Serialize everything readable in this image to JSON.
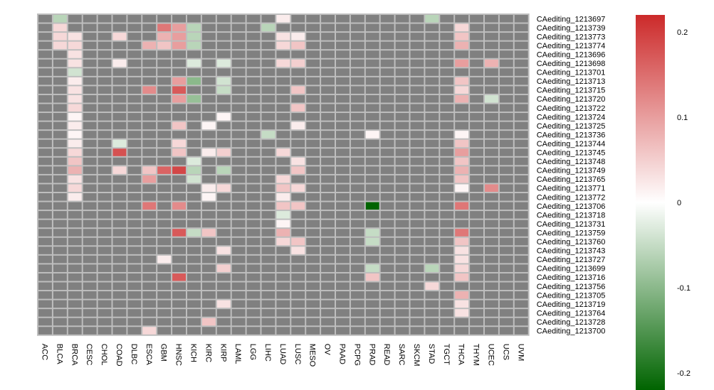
{
  "chart_data": {
    "type": "heatmap",
    "title": "",
    "columns": [
      "ACC",
      "BLCA",
      "BRCA",
      "CESC",
      "CHOL",
      "COAD",
      "DLBC",
      "ESCA",
      "GBM",
      "HNSC",
      "KICH",
      "KIRC",
      "KIRP",
      "LAML",
      "LGG",
      "LIHC",
      "LUAD",
      "LUSC",
      "MESO",
      "OV",
      "PAAD",
      "PCPG",
      "PRAD",
      "READ",
      "SARC",
      "SKCM",
      "STAD",
      "TGCT",
      "THCA",
      "THYM",
      "UCEC",
      "UCS",
      "UVM"
    ],
    "rows": [
      "CAediting_1213697",
      "CAediting_1213739",
      "CAediting_1213773",
      "CAediting_1213774",
      "CAediting_1213696",
      "CAediting_1213698",
      "CAediting_1213701",
      "CAediting_1213713",
      "CAediting_1213715",
      "CAediting_1213720",
      "CAediting_1213722",
      "CAediting_1213724",
      "CAediting_1213725",
      "CAediting_1213736",
      "CAediting_1213744",
      "CAediting_1213745",
      "CAediting_1213748",
      "CAediting_1213749",
      "CAediting_1213765",
      "CAediting_1213771",
      "CAediting_1213772",
      "CAediting_1213706",
      "CAediting_1213718",
      "CAediting_1213731",
      "CAediting_1213759",
      "CAediting_1213760",
      "CAediting_1213743",
      "CAediting_1213727",
      "CAediting_1213699",
      "CAediting_1213716",
      "CAediting_1213756",
      "CAediting_1213705",
      "CAediting_1213719",
      "CAediting_1213764",
      "CAediting_1213728",
      "CAediting_1213700"
    ],
    "values": [
      [
        null,
        -0.06,
        null,
        null,
        null,
        null,
        null,
        null,
        null,
        null,
        null,
        null,
        null,
        null,
        null,
        null,
        0.02,
        null,
        null,
        null,
        null,
        null,
        null,
        null,
        null,
        null,
        -0.06,
        null,
        null,
        null,
        null,
        null,
        null
      ],
      [
        null,
        0.04,
        null,
        null,
        null,
        null,
        null,
        null,
        0.14,
        0.1,
        -0.06,
        null,
        null,
        null,
        null,
        -0.06,
        null,
        null,
        null,
        null,
        null,
        null,
        null,
        null,
        null,
        null,
        null,
        null,
        0.04,
        null,
        null,
        null,
        null
      ],
      [
        null,
        0.04,
        0.03,
        null,
        null,
        0.04,
        null,
        null,
        0.08,
        0.1,
        -0.06,
        null,
        null,
        null,
        null,
        null,
        0.03,
        0.02,
        null,
        null,
        null,
        null,
        null,
        null,
        null,
        null,
        null,
        null,
        0.06,
        null,
        null,
        null,
        null
      ],
      [
        null,
        0.04,
        0.04,
        null,
        null,
        null,
        null,
        0.08,
        0.06,
        0.1,
        -0.06,
        null,
        null,
        null,
        null,
        null,
        0.04,
        0.06,
        null,
        null,
        null,
        null,
        null,
        null,
        null,
        null,
        null,
        null,
        0.08,
        null,
        null,
        null,
        null
      ],
      [
        null,
        null,
        0.03,
        null,
        null,
        null,
        null,
        null,
        null,
        null,
        null,
        null,
        null,
        null,
        null,
        null,
        null,
        null,
        null,
        null,
        null,
        null,
        null,
        null,
        null,
        null,
        null,
        null,
        null,
        null,
        null,
        null,
        null
      ],
      [
        null,
        null,
        0.03,
        null,
        null,
        0.02,
        null,
        null,
        null,
        null,
        -0.03,
        null,
        -0.03,
        null,
        null,
        null,
        0.04,
        0.05,
        null,
        null,
        null,
        null,
        null,
        null,
        null,
        null,
        null,
        null,
        0.1,
        null,
        0.08,
        null,
        null
      ],
      [
        null,
        null,
        -0.04,
        null,
        null,
        null,
        null,
        null,
        null,
        null,
        null,
        null,
        null,
        null,
        null,
        null,
        null,
        null,
        null,
        null,
        null,
        null,
        null,
        null,
        null,
        null,
        null,
        null,
        null,
        null,
        null,
        null,
        null
      ],
      [
        null,
        null,
        0.02,
        null,
        null,
        null,
        null,
        null,
        null,
        0.1,
        -0.1,
        null,
        -0.04,
        null,
        null,
        null,
        null,
        null,
        null,
        null,
        null,
        null,
        null,
        null,
        null,
        null,
        null,
        null,
        0.06,
        null,
        null,
        null,
        null
      ],
      [
        null,
        null,
        0.03,
        null,
        null,
        null,
        null,
        0.12,
        null,
        0.17,
        null,
        null,
        -0.05,
        null,
        null,
        null,
        null,
        0.06,
        null,
        null,
        null,
        null,
        null,
        null,
        null,
        null,
        null,
        null,
        0.04,
        null,
        null,
        null,
        null
      ],
      [
        null,
        null,
        0.03,
        null,
        null,
        null,
        null,
        null,
        null,
        0.1,
        -0.09,
        null,
        null,
        null,
        null,
        null,
        null,
        null,
        null,
        null,
        null,
        null,
        null,
        null,
        null,
        null,
        null,
        null,
        0.08,
        null,
        -0.04,
        null,
        null
      ],
      [
        null,
        null,
        0.04,
        null,
        null,
        null,
        null,
        null,
        null,
        null,
        null,
        null,
        null,
        null,
        null,
        null,
        null,
        0.06,
        null,
        null,
        null,
        null,
        null,
        null,
        null,
        null,
        null,
        null,
        null,
        null,
        null,
        null,
        null
      ],
      [
        null,
        null,
        0.01,
        null,
        null,
        null,
        null,
        null,
        null,
        null,
        null,
        null,
        0.01,
        null,
        null,
        null,
        null,
        null,
        null,
        null,
        null,
        null,
        null,
        null,
        null,
        null,
        null,
        null,
        null,
        null,
        null,
        null,
        null
      ],
      [
        null,
        null,
        0.02,
        null,
        null,
        null,
        null,
        null,
        null,
        0.06,
        null,
        0.01,
        null,
        null,
        null,
        null,
        null,
        0.02,
        null,
        null,
        null,
        null,
        null,
        null,
        null,
        null,
        null,
        null,
        null,
        null,
        null,
        null,
        null
      ],
      [
        null,
        null,
        0.01,
        null,
        null,
        null,
        null,
        null,
        null,
        null,
        null,
        null,
        null,
        null,
        null,
        -0.05,
        null,
        null,
        null,
        null,
        null,
        null,
        0.01,
        null,
        null,
        null,
        null,
        null,
        0.01,
        null,
        null,
        null,
        null
      ],
      [
        null,
        null,
        0.02,
        null,
        null,
        -0.03,
        null,
        null,
        null,
        0.04,
        null,
        null,
        null,
        null,
        null,
        null,
        null,
        null,
        null,
        null,
        null,
        null,
        null,
        null,
        null,
        null,
        null,
        null,
        0.06,
        null,
        null,
        null,
        null
      ],
      [
        null,
        null,
        0.04,
        null,
        null,
        0.18,
        null,
        null,
        null,
        0.06,
        null,
        0.02,
        0.05,
        null,
        null,
        null,
        0.04,
        null,
        null,
        null,
        null,
        null,
        null,
        null,
        null,
        null,
        null,
        null,
        0.1,
        null,
        null,
        null,
        null
      ],
      [
        null,
        null,
        0.06,
        null,
        null,
        null,
        null,
        null,
        null,
        null,
        -0.03,
        null,
        null,
        null,
        null,
        null,
        null,
        0.03,
        null,
        null,
        null,
        null,
        null,
        null,
        null,
        null,
        null,
        null,
        0.06,
        null,
        null,
        null,
        null
      ],
      [
        null,
        null,
        0.08,
        null,
        null,
        0.04,
        null,
        0.06,
        0.16,
        0.19,
        -0.06,
        null,
        -0.06,
        null,
        null,
        null,
        null,
        0.06,
        null,
        null,
        null,
        null,
        null,
        null,
        null,
        null,
        null,
        null,
        0.08,
        null,
        null,
        null,
        null
      ],
      [
        null,
        null,
        0.03,
        null,
        null,
        null,
        null,
        0.1,
        null,
        null,
        -0.04,
        null,
        null,
        null,
        null,
        null,
        0.04,
        null,
        null,
        null,
        null,
        null,
        null,
        null,
        null,
        null,
        null,
        null,
        0.06,
        null,
        null,
        null,
        null
      ],
      [
        null,
        null,
        0.04,
        null,
        null,
        null,
        null,
        null,
        null,
        null,
        null,
        0.02,
        0.04,
        null,
        null,
        null,
        0.06,
        0.04,
        null,
        null,
        null,
        null,
        null,
        null,
        null,
        null,
        null,
        null,
        0.01,
        null,
        0.12,
        null,
        null
      ],
      [
        null,
        null,
        0.02,
        null,
        null,
        null,
        null,
        null,
        null,
        null,
        null,
        0.01,
        null,
        null,
        null,
        null,
        0.02,
        null,
        null,
        null,
        null,
        null,
        null,
        null,
        null,
        null,
        null,
        null,
        null,
        null,
        null,
        null,
        null
      ],
      [
        null,
        null,
        null,
        null,
        null,
        null,
        null,
        0.14,
        null,
        0.12,
        null,
        null,
        null,
        null,
        null,
        null,
        0.06,
        0.06,
        null,
        null,
        null,
        null,
        -0.22,
        null,
        null,
        null,
        null,
        null,
        0.14,
        null,
        null,
        null,
        null
      ],
      [
        null,
        null,
        null,
        null,
        null,
        null,
        null,
        null,
        null,
        null,
        null,
        null,
        null,
        null,
        null,
        null,
        -0.03,
        null,
        null,
        null,
        null,
        null,
        null,
        null,
        null,
        null,
        null,
        null,
        null,
        null,
        null,
        null,
        null
      ],
      [
        null,
        null,
        null,
        null,
        null,
        null,
        null,
        null,
        null,
        null,
        null,
        null,
        null,
        null,
        null,
        null,
        0.01,
        null,
        null,
        null,
        null,
        null,
        null,
        null,
        null,
        null,
        null,
        null,
        null,
        null,
        null,
        null,
        null
      ],
      [
        null,
        null,
        null,
        null,
        null,
        null,
        null,
        null,
        null,
        0.17,
        -0.05,
        0.06,
        null,
        null,
        null,
        null,
        0.08,
        null,
        null,
        null,
        null,
        null,
        -0.05,
        null,
        null,
        null,
        null,
        null,
        0.14,
        null,
        null,
        null,
        null
      ],
      [
        null,
        null,
        null,
        null,
        null,
        null,
        null,
        null,
        null,
        null,
        null,
        null,
        null,
        null,
        null,
        null,
        0.04,
        0.06,
        null,
        null,
        null,
        null,
        -0.05,
        null,
        null,
        null,
        null,
        null,
        0.06,
        null,
        null,
        null,
        null
      ],
      [
        null,
        null,
        null,
        null,
        null,
        null,
        null,
        null,
        null,
        null,
        null,
        null,
        0.03,
        null,
        null,
        null,
        null,
        0.03,
        null,
        null,
        null,
        null,
        null,
        null,
        null,
        null,
        null,
        null,
        0.03,
        null,
        null,
        null,
        null
      ],
      [
        null,
        null,
        null,
        null,
        null,
        null,
        null,
        null,
        0.02,
        null,
        null,
        null,
        null,
        null,
        null,
        null,
        null,
        null,
        null,
        null,
        null,
        null,
        null,
        null,
        null,
        null,
        null,
        null,
        0.03,
        null,
        null,
        null,
        null
      ],
      [
        null,
        null,
        null,
        null,
        null,
        null,
        null,
        null,
        null,
        null,
        null,
        null,
        0.05,
        null,
        null,
        null,
        null,
        null,
        null,
        null,
        null,
        null,
        -0.05,
        null,
        null,
        null,
        -0.06,
        null,
        0.04,
        null,
        null,
        null,
        null
      ],
      [
        null,
        null,
        null,
        null,
        null,
        null,
        null,
        null,
        null,
        0.17,
        null,
        null,
        null,
        null,
        null,
        null,
        null,
        null,
        null,
        null,
        null,
        null,
        0.06,
        null,
        null,
        null,
        null,
        null,
        0.06,
        null,
        null,
        null,
        null
      ],
      [
        null,
        null,
        null,
        null,
        null,
        null,
        null,
        null,
        null,
        null,
        null,
        null,
        null,
        null,
        null,
        null,
        null,
        null,
        null,
        null,
        null,
        null,
        null,
        null,
        null,
        null,
        0.04,
        null,
        null,
        null,
        null,
        null,
        null
      ],
      [
        null,
        null,
        null,
        null,
        null,
        null,
        null,
        null,
        null,
        null,
        null,
        null,
        null,
        null,
        null,
        null,
        null,
        null,
        null,
        null,
        null,
        null,
        null,
        null,
        null,
        null,
        null,
        null,
        0.08,
        null,
        null,
        null,
        null
      ],
      [
        null,
        null,
        null,
        null,
        null,
        null,
        null,
        null,
        null,
        null,
        null,
        null,
        0.03,
        null,
        null,
        null,
        null,
        null,
        null,
        null,
        null,
        null,
        null,
        null,
        null,
        null,
        null,
        null,
        0.03,
        null,
        null,
        null,
        null
      ],
      [
        null,
        null,
        null,
        null,
        null,
        null,
        null,
        null,
        null,
        null,
        null,
        null,
        null,
        null,
        null,
        null,
        null,
        null,
        null,
        null,
        null,
        null,
        null,
        null,
        null,
        null,
        null,
        null,
        0.03,
        null,
        null,
        null,
        null
      ],
      [
        null,
        null,
        null,
        null,
        null,
        null,
        null,
        null,
        null,
        null,
        null,
        0.06,
        null,
        null,
        null,
        null,
        null,
        null,
        null,
        null,
        null,
        null,
        null,
        null,
        null,
        null,
        null,
        null,
        null,
        null,
        null,
        null,
        null
      ],
      [
        null,
        null,
        null,
        null,
        null,
        null,
        null,
        0.04,
        null,
        null,
        null,
        null,
        null,
        null,
        null,
        null,
        null,
        null,
        null,
        null,
        null,
        null,
        null,
        null,
        null,
        null,
        null,
        null,
        null,
        null,
        null,
        null,
        null
      ]
    ],
    "color_scale": {
      "min": -0.22,
      "max": 0.22,
      "low": "#006400",
      "mid": "#ffffff",
      "high": "#cc2a2a"
    },
    "na_color": "#808080",
    "legend": {
      "ticks": [
        0.2,
        0.1,
        0,
        -0.1,
        -0.2
      ],
      "tick_labels": [
        "0.2",
        "0.1",
        "0",
        "-0.1",
        "-0.2"
      ],
      "placement": "right"
    }
  }
}
